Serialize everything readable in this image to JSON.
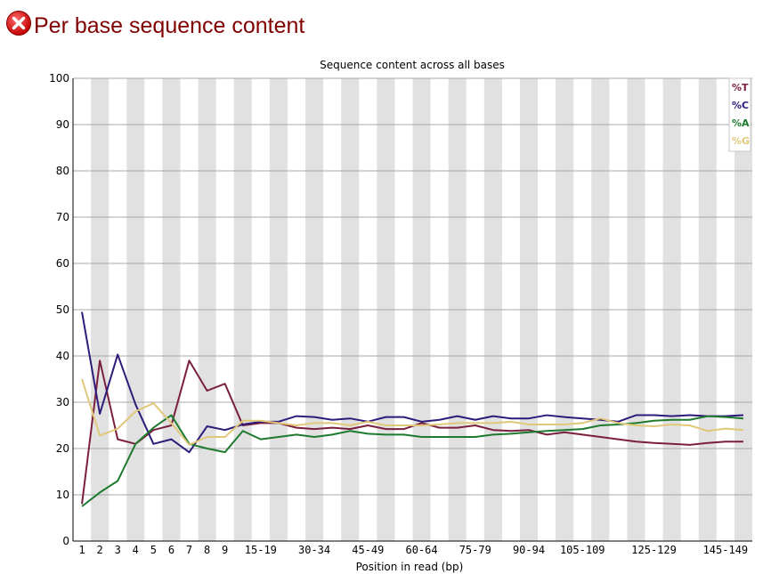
{
  "header": {
    "title": "Per base sequence content",
    "status_icon": "error-icon"
  },
  "chart_data": {
    "type": "line",
    "title": "Sequence content across all bases",
    "xlabel": "Position in read (bp)",
    "ylabel": "",
    "ylim": [
      0,
      100
    ],
    "yticks": [
      "0",
      "10",
      "20",
      "30",
      "40",
      "50",
      "60",
      "70",
      "80",
      "90",
      "100"
    ],
    "grid": true,
    "legend": "top-right",
    "x": [
      "1",
      "2",
      "3",
      "4",
      "5",
      "6",
      "7",
      "8",
      "9",
      "10-14",
      "15-19",
      "20-24",
      "25-29",
      "30-34",
      "35-39",
      "40-44",
      "45-49",
      "50-54",
      "55-59",
      "60-64",
      "65-69",
      "70-74",
      "75-79",
      "80-84",
      "85-89",
      "90-94",
      "95-99",
      "100-104",
      "105-109",
      "110-114",
      "115-119",
      "120-124",
      "125-129",
      "130-134",
      "135-139",
      "140-144",
      "145-149",
      "150-151"
    ],
    "xtick_labels": [
      "1",
      "2",
      "3",
      "4",
      "5",
      "6",
      "7",
      "8",
      "9",
      "15-19",
      "30-34",
      "45-49",
      "60-64",
      "75-79",
      "90-94",
      "105-109",
      "125-129",
      "145-149"
    ],
    "xtick_categories": [
      "1",
      "2",
      "3",
      "4",
      "5",
      "6",
      "7",
      "8",
      "9",
      "15-19",
      "30-34",
      "45-49",
      "60-64",
      "75-79",
      "90-94",
      "105-109",
      "125-129",
      "145-149"
    ],
    "series": [
      {
        "name": "%T",
        "color": "#7a1f3d",
        "values": [
          8.0,
          39.0,
          22.0,
          21.0,
          24.0,
          25.0,
          39.0,
          32.5,
          34.0,
          25.0,
          25.5,
          25.5,
          24.5,
          24.2,
          24.5,
          24.2,
          25.0,
          24.2,
          24.2,
          25.5,
          24.5,
          24.5,
          25.0,
          24.0,
          23.8,
          24.0,
          23.0,
          23.5,
          23.0,
          22.5,
          22.0,
          21.5,
          21.2,
          21.0,
          20.8,
          21.2,
          21.5,
          21.5
        ]
      },
      {
        "name": "%C",
        "color": "#2e1a7a",
        "values": [
          49.5,
          27.5,
          40.3,
          29.5,
          21.0,
          22.0,
          19.2,
          24.8,
          24.0,
          25.2,
          25.8,
          25.8,
          27.0,
          26.8,
          26.2,
          26.5,
          25.8,
          26.8,
          26.8,
          25.8,
          26.2,
          27.0,
          26.2,
          27.0,
          26.5,
          26.5,
          27.2,
          26.8,
          26.5,
          26.2,
          25.8,
          27.2,
          27.2,
          27.0,
          27.2,
          27.0,
          27.0,
          27.2
        ]
      },
      {
        "name": "%A",
        "color": "#1e7a2e",
        "values": [
          7.5,
          10.5,
          13.0,
          21.0,
          24.5,
          27.2,
          21.0,
          20.0,
          19.2,
          23.8,
          22.0,
          22.5,
          23.0,
          22.5,
          23.0,
          23.8,
          23.2,
          23.0,
          23.0,
          22.5,
          22.5,
          22.5,
          22.5,
          23.0,
          23.2,
          23.5,
          23.8,
          24.0,
          24.2,
          25.0,
          25.2,
          25.5,
          26.0,
          26.2,
          26.2,
          27.0,
          26.8,
          26.5
        ]
      },
      {
        "name": "%G",
        "color": "#e0c87a",
        "values": [
          35.0,
          22.8,
          24.3,
          28.0,
          29.8,
          25.5,
          20.8,
          22.5,
          22.5,
          26.0,
          26.0,
          25.5,
          25.0,
          25.5,
          25.5,
          25.0,
          25.8,
          25.0,
          25.0,
          25.0,
          25.2,
          25.5,
          25.5,
          25.5,
          25.8,
          25.2,
          25.2,
          25.2,
          25.5,
          26.5,
          25.5,
          25.0,
          24.8,
          25.2,
          25.0,
          23.8,
          24.3,
          24.0
        ]
      }
    ]
  }
}
